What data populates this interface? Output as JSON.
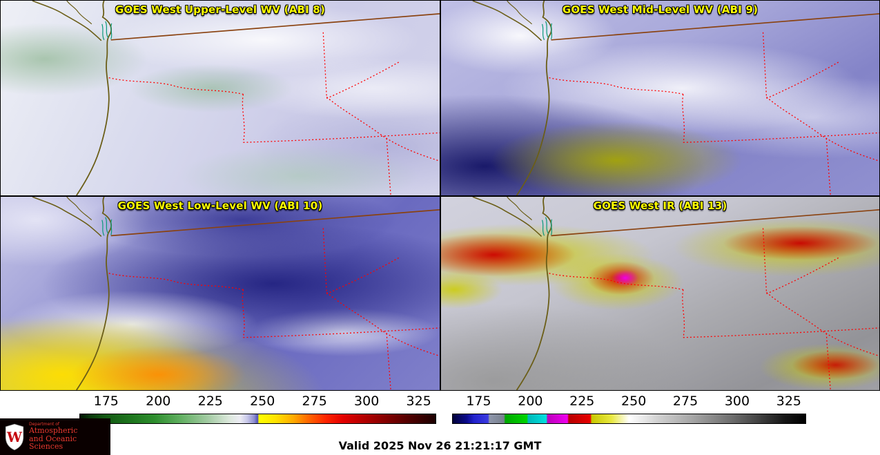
{
  "panels": [
    {
      "title": "GOES West Upper-Level WV (ABI 8)"
    },
    {
      "title": "GOES West Mid-Level WV (ABI 9)"
    },
    {
      "title": "GOES West Low-Level WV (ABI 10)"
    },
    {
      "title": "GOES West IR (ABI 13)"
    }
  ],
  "colorbars": [
    {
      "name": "water-vapor-temperature-scale",
      "ticks": [
        "175",
        "200",
        "225",
        "250",
        "275",
        "300",
        "325"
      ],
      "stops": [
        {
          "p": 0,
          "c": "#001400"
        },
        {
          "p": 3,
          "c": "#0b3a0b"
        },
        {
          "p": 7,
          "c": "#125812"
        },
        {
          "p": 14,
          "c": "#1d741d"
        },
        {
          "p": 21,
          "c": "#2e8e2e"
        },
        {
          "p": 28,
          "c": "#5fae5f"
        },
        {
          "p": 36,
          "c": "#a3cba3"
        },
        {
          "p": 42,
          "c": "#dce8dc"
        },
        {
          "p": 45,
          "c": "#ececf4"
        },
        {
          "p": 47,
          "c": "#c9c9e9"
        },
        {
          "p": 49,
          "c": "#8d8dd0"
        },
        {
          "p": 50,
          "c": "#4f4fb4"
        },
        {
          "p": 50.3,
          "c": "#ffff00"
        },
        {
          "p": 55,
          "c": "#ffe300"
        },
        {
          "p": 60,
          "c": "#ffab00"
        },
        {
          "p": 64,
          "c": "#ff6a00"
        },
        {
          "p": 69,
          "c": "#ff2600"
        },
        {
          "p": 74,
          "c": "#e30000"
        },
        {
          "p": 79,
          "c": "#bb0000"
        },
        {
          "p": 86,
          "c": "#840000"
        },
        {
          "p": 93,
          "c": "#4d0000"
        },
        {
          "p": 100,
          "c": "#1c0000"
        }
      ]
    },
    {
      "name": "ir-temperature-scale",
      "ticks": [
        "175",
        "200",
        "225",
        "250",
        "275",
        "300",
        "325"
      ],
      "stops": [
        {
          "p": 0,
          "c": "#02023a"
        },
        {
          "p": 4,
          "c": "#0a0a8c"
        },
        {
          "p": 6,
          "c": "#2222cc"
        },
        {
          "p": 10,
          "c": "#3a3ae0"
        },
        {
          "p": 10.4,
          "c": "#8e96aa"
        },
        {
          "p": 14.5,
          "c": "#78808e"
        },
        {
          "p": 14.9,
          "c": "#00a800"
        },
        {
          "p": 21,
          "c": "#00d400"
        },
        {
          "p": 21.4,
          "c": "#00b8b8"
        },
        {
          "p": 26.5,
          "c": "#00e0e0"
        },
        {
          "p": 26.9,
          "c": "#bc00bc"
        },
        {
          "p": 32.5,
          "c": "#ee00ee"
        },
        {
          "p": 32.9,
          "c": "#b80000"
        },
        {
          "p": 39,
          "c": "#e80000"
        },
        {
          "p": 39.4,
          "c": "#c8c800"
        },
        {
          "p": 45,
          "c": "#e8e840"
        },
        {
          "p": 50,
          "c": "#ffffff"
        },
        {
          "p": 58,
          "c": "#d2d2d2"
        },
        {
          "p": 68,
          "c": "#a5a5a5"
        },
        {
          "p": 79,
          "c": "#6e6e6e"
        },
        {
          "p": 88,
          "c": "#3a3a3a"
        },
        {
          "p": 94,
          "c": "#161616"
        },
        {
          "p": 100,
          "c": "#000000"
        }
      ]
    }
  ],
  "footer": {
    "valid_time": "Valid 2025 Nov 26 21:21:17 GMT"
  },
  "logo": {
    "crest_letter": "W",
    "dept_small": "Department of",
    "dept_line1": "Atmospheric",
    "dept_line2": "and Oceanic Sciences"
  },
  "colors": {
    "title_yellow": "#ffff00",
    "state_border_red": "#ff0000",
    "country_border_brown": "#8a4210",
    "coastline_olive": "#6b5e17",
    "puget_sound_teal": "#0a9a7a",
    "uw_red": "#c5050c"
  }
}
